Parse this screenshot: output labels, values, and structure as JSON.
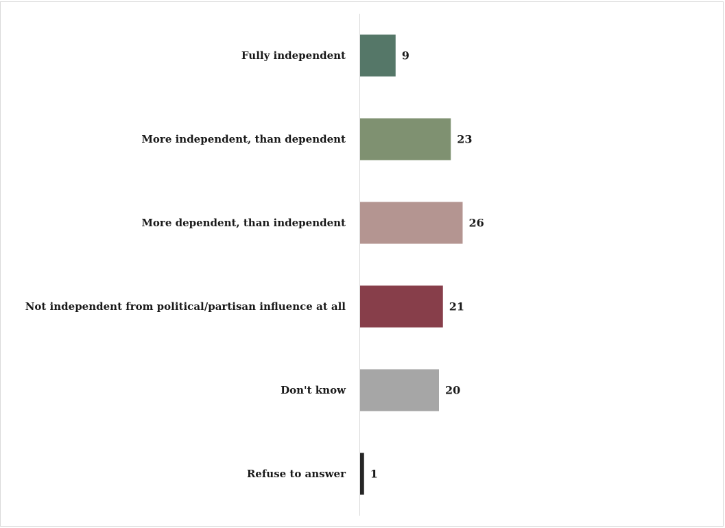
{
  "chart_data": {
    "type": "bar",
    "orientation": "horizontal",
    "title": "",
    "xlabel": "",
    "ylabel": "",
    "categories": [
      "Fully independent",
      "More independent, than dependent",
      "More dependent, than independent",
      "Not independent from political/partisan influence at all",
      "Don't know",
      "Refuse to answer"
    ],
    "values": [
      9,
      23,
      26,
      21,
      20,
      1
    ],
    "colors": [
      "#557768",
      "#7f9171",
      "#b49591",
      "#873e4a",
      "#a6a6a6",
      "#262626"
    ],
    "data_labels": [
      "9",
      "23",
      "26",
      "21",
      "20",
      "1"
    ],
    "xlim": [
      0,
      26
    ],
    "grid": false,
    "legend": "none"
  }
}
